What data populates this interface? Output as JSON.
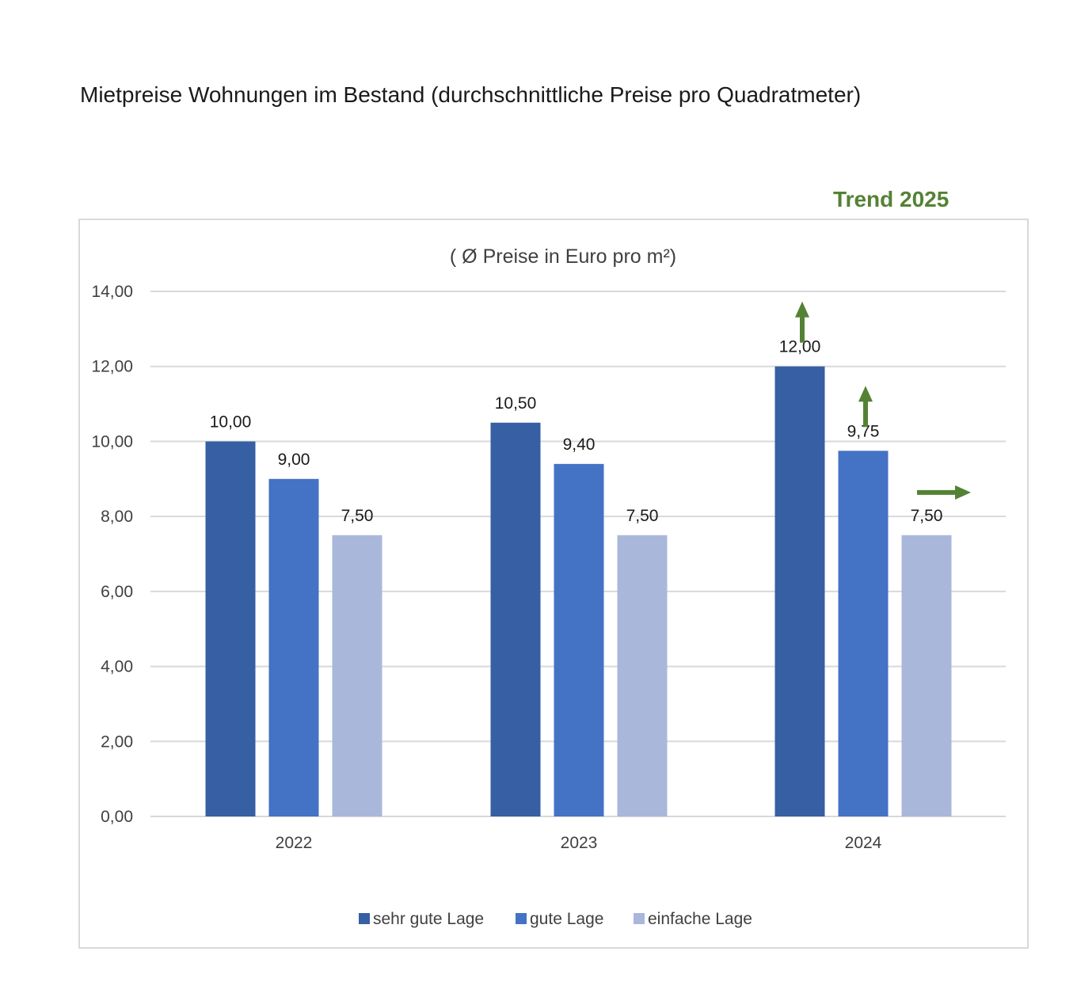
{
  "page_title": "Mietpreise Wohnungen im Bestand (durchschnittliche Preise pro Quadratmeter)",
  "trend_label": "Trend 2025",
  "colors": {
    "series": [
      "#365FA4",
      "#4472C4",
      "#A9B7DB"
    ],
    "trend_arrow": "#548235",
    "trend_text": "#548235",
    "grid": "#d9d9d9",
    "text": "#404040"
  },
  "chart_data": {
    "type": "bar",
    "title": "( Ø Preise in Euro pro m²)",
    "categories": [
      "2022",
      "2023",
      "2024"
    ],
    "series": [
      {
        "name": "sehr gute Lage",
        "values": [
          10.0,
          10.5,
          12.0
        ],
        "labels": [
          "10,00",
          "10,50",
          "12,00"
        ]
      },
      {
        "name": "gute Lage",
        "values": [
          9.0,
          9.4,
          9.75
        ],
        "labels": [
          "9,00",
          "9,40",
          "9,75"
        ]
      },
      {
        "name": "einfache Lage",
        "values": [
          7.5,
          7.5,
          7.5
        ],
        "labels": [
          "7,50",
          "7,50",
          "7,50"
        ]
      }
    ],
    "ylim": [
      0,
      14
    ],
    "yticks": [
      0,
      2,
      4,
      6,
      8,
      10,
      12,
      14
    ],
    "ytick_labels": [
      "0,00",
      "2,00",
      "4,00",
      "6,00",
      "8,00",
      "10,00",
      "12,00",
      "14,00"
    ],
    "xlabel": "",
    "ylabel": "",
    "grid": true,
    "legend_position": "bottom",
    "trend_2025": [
      {
        "series": "sehr gute Lage",
        "direction": "up"
      },
      {
        "series": "gute Lage",
        "direction": "up"
      },
      {
        "series": "einfache Lage",
        "direction": "right"
      }
    ]
  }
}
